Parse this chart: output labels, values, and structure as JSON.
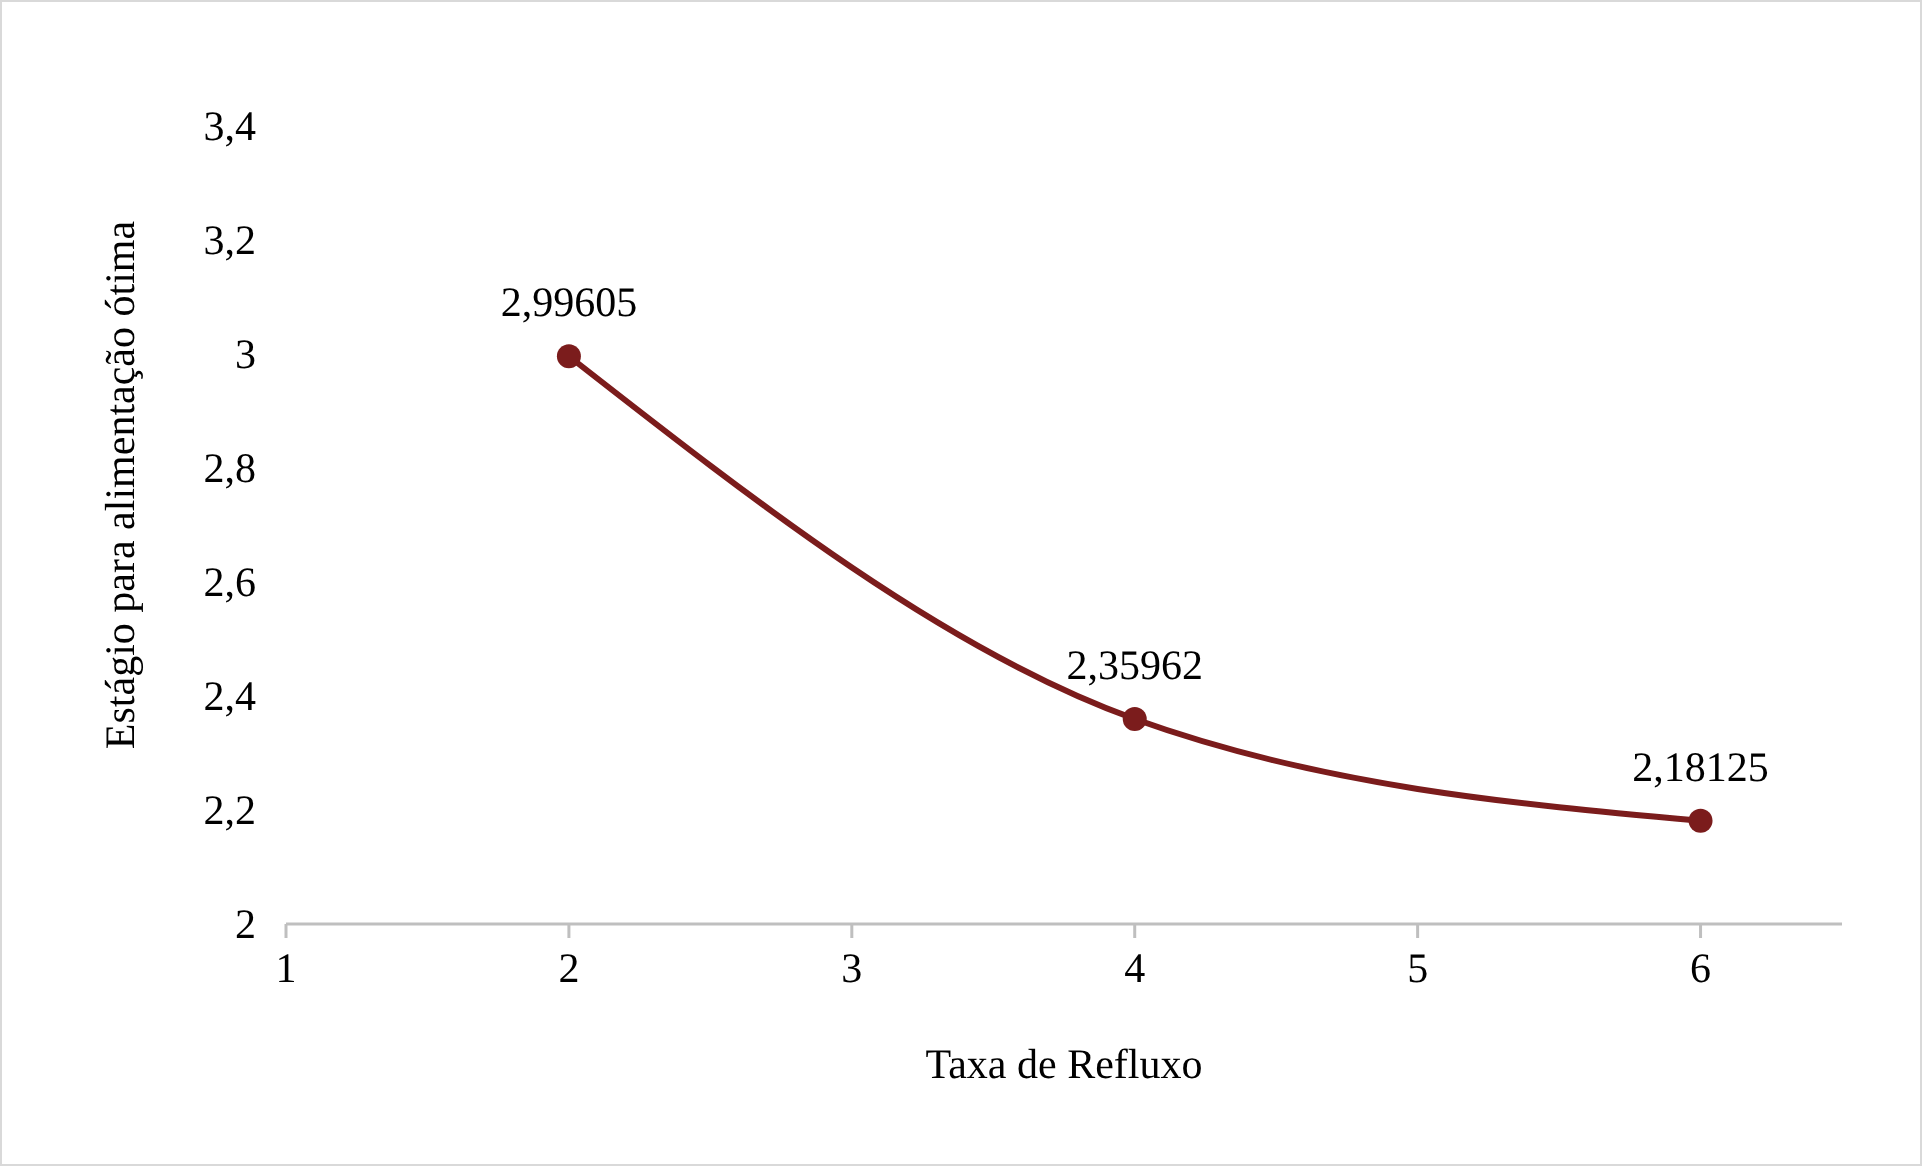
{
  "chart_data": {
    "type": "line",
    "xlabel": "Taxa de Refluxo",
    "ylabel": "Estágio para alimentação ótima",
    "x": [
      2,
      4,
      6
    ],
    "series": [
      {
        "color": "#7b1c1c",
        "values": [
          2.99605,
          2.35962,
          2.18125
        ],
        "value_labels": [
          "2,99605",
          "2,35962",
          "2,18125"
        ]
      }
    ],
    "xlim": [
      1,
      6.5
    ],
    "xticks": [
      1,
      2,
      3,
      4,
      5,
      6
    ],
    "ylim": [
      2,
      3.4
    ],
    "yticks": [
      2,
      {
        "value": 2.2,
        "label": "2,2"
      },
      {
        "value": 2.4,
        "label": "2,4"
      },
      {
        "value": 2.6,
        "label": "2,6"
      },
      {
        "value": 2.8,
        "label": "2,8"
      },
      3,
      {
        "value": 3.2,
        "label": "3,2"
      },
      {
        "value": 3.4,
        "label": "3,4"
      }
    ],
    "grid": false,
    "marker": "circle",
    "line_style": "solid"
  }
}
